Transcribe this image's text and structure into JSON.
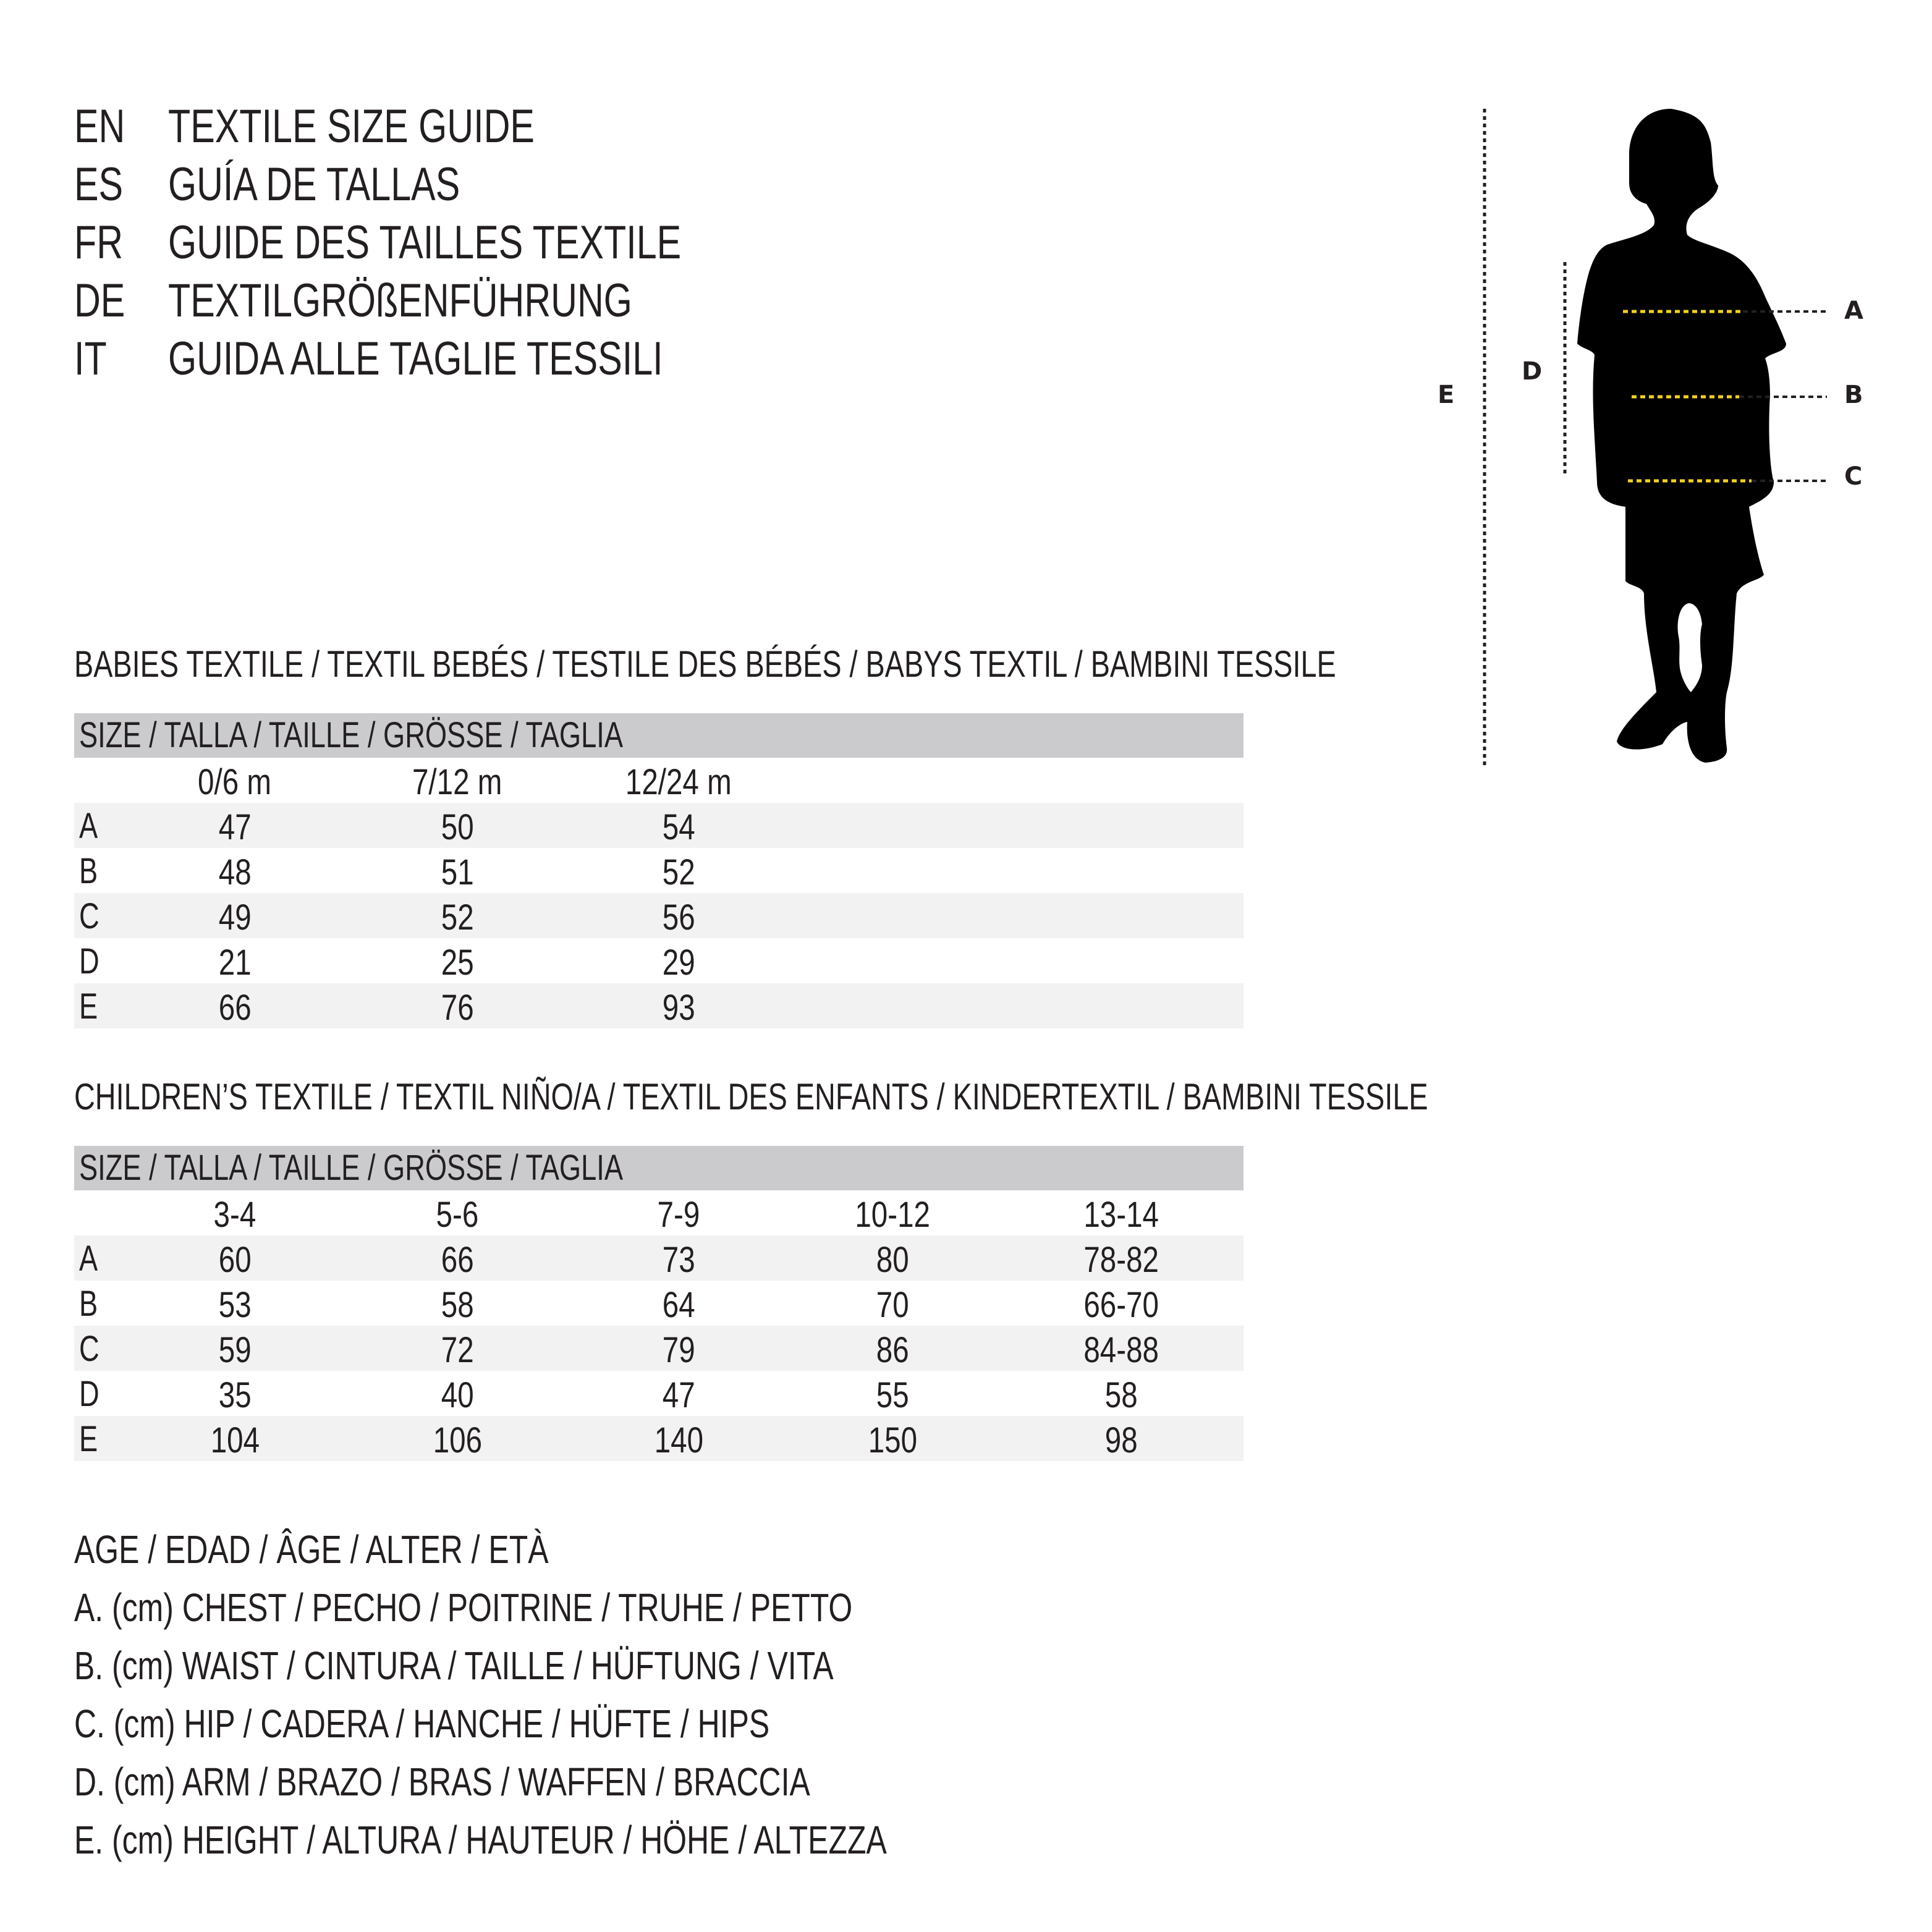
{
  "title_lines": [
    {
      "code": "EN",
      "text": "TEXTILE SIZE GUIDE"
    },
    {
      "code": "ES",
      "text": "GUÍA DE TALLAS"
    },
    {
      "code": "FR",
      "text": "GUIDE DES TAILLES TEXTILE"
    },
    {
      "code": "DE",
      "text": "TEXTILGRÖßENFÜHRUNG"
    },
    {
      "code": "IT",
      "text": "GUIDA ALLE TAGLIE TESSILI"
    }
  ],
  "figure": {
    "labels": {
      "A": "A",
      "B": "B",
      "C": "C",
      "D": "D",
      "E": "E"
    },
    "colors": {
      "silhouette": "#000000",
      "measure_line": "#f2d21b",
      "guide_line": "#231f20"
    }
  },
  "babies": {
    "heading": "BABIES TEXTILE / TEXTIL BEBÉS / TESTILE DES BÉBÉS / BABYS TEXTIL / BAMBINI TESSILE",
    "size_label": "SIZE / TALLA / TAILLE / GRÖSSE / TAGLIA",
    "columns": [
      "0/6 m",
      "7/12 m",
      "12/24 m"
    ],
    "rows": [
      {
        "label": "A",
        "values": [
          "47",
          "50",
          "54"
        ]
      },
      {
        "label": "B",
        "values": [
          "48",
          "51",
          "52"
        ]
      },
      {
        "label": "C",
        "values": [
          "49",
          "52",
          "56"
        ]
      },
      {
        "label": "D",
        "values": [
          "21",
          "25",
          "29"
        ]
      },
      {
        "label": "E",
        "values": [
          "66",
          "76",
          "93"
        ]
      }
    ]
  },
  "children": {
    "heading": "CHILDREN’S TEXTILE / TEXTIL NIÑO/A / TEXTIL DES ENFANTS / KINDERTEXTIL / BAMBINI TESSILE",
    "size_label": "SIZE / TALLA / TAILLE / GRÖSSE / TAGLIA",
    "columns": [
      "3-4",
      "5-6",
      "7-9",
      "10-12",
      "13-14"
    ],
    "rows": [
      {
        "label": "A",
        "values": [
          "60",
          "66",
          "73",
          "80",
          "78-82"
        ]
      },
      {
        "label": "B",
        "values": [
          "53",
          "58",
          "64",
          "70",
          "66-70"
        ]
      },
      {
        "label": "C",
        "values": [
          "59",
          "72",
          "79",
          "86",
          "84-88"
        ]
      },
      {
        "label": "D",
        "values": [
          "35",
          "40",
          "47",
          "55",
          "58"
        ]
      },
      {
        "label": "E",
        "values": [
          "104",
          "106",
          "140",
          "150",
          "98"
        ]
      }
    ]
  },
  "legend": [
    "AGE / EDAD / ÂGE / ALTER / ETÀ",
    "A. (cm) CHEST / PECHO / POITRINE / TRUHE / PETTO",
    "B. (cm) WAIST / CINTURA / TAILLE / HÜFTUNG / VITA",
    "C. (cm) HIP / CADERA / HANCHE / HÜFTE / HIPS",
    "D. (cm) ARM / BRAZO / BRAS / WAFFEN / BRACCIA",
    "E. (cm) HEIGHT / ALTURA / HAUTEUR / HÖHE / ALTEZZA"
  ]
}
